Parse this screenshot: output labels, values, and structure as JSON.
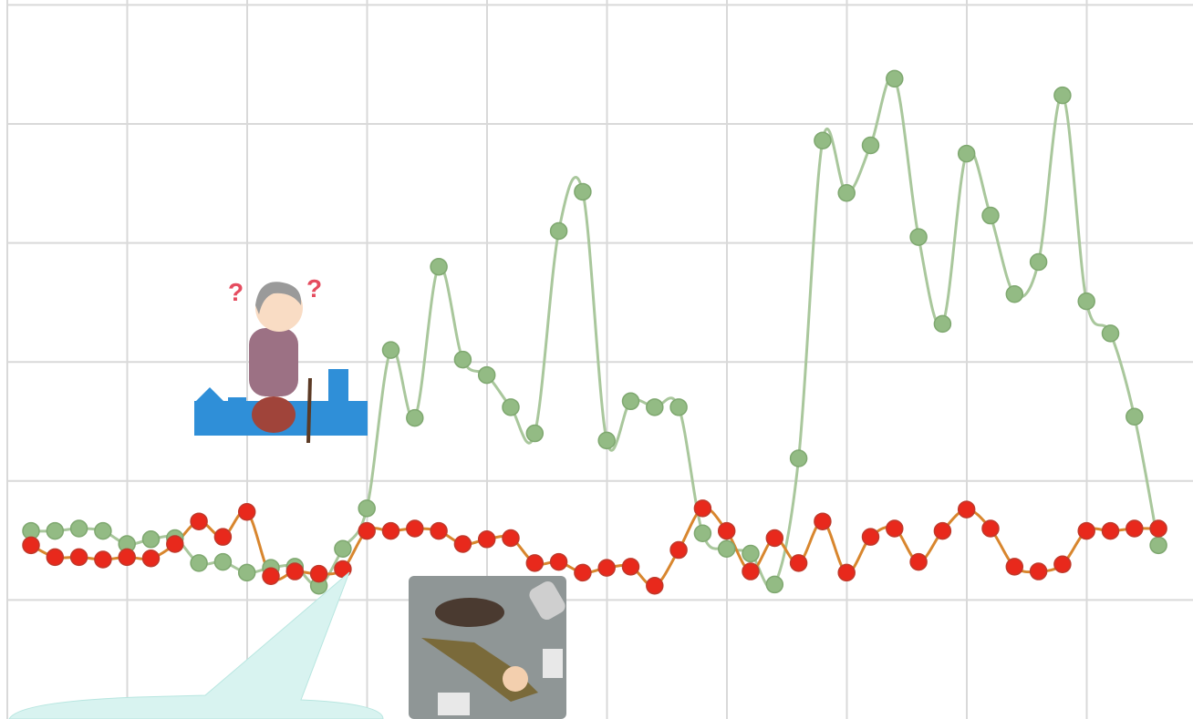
{
  "chart_data": {
    "type": "line",
    "categories": [
      null,
      null,
      null,
      null,
      null,
      null,
      null,
      null,
      null,
      null,
      null,
      null,
      null,
      null,
      null,
      null,
      null,
      null,
      null,
      null,
      null,
      null,
      null,
      null,
      null,
      null,
      null,
      null,
      null,
      null,
      null,
      null,
      null,
      null,
      null,
      null,
      null,
      null,
      null,
      null,
      null,
      null,
      null,
      null,
      null,
      null,
      null,
      null
    ],
    "series": [
      {
        "color": "#93bb84",
        "values": [
          1.58,
          1.58,
          1.6,
          1.58,
          1.47,
          1.51,
          1.52,
          1.31,
          1.32,
          1.23,
          1.27,
          1.28,
          1.12,
          1.43,
          1.77,
          3.1,
          2.53,
          3.8,
          3.02,
          2.89,
          2.62,
          2.4,
          4.1,
          4.43,
          2.34,
          2.67,
          2.62,
          2.62,
          1.56,
          1.43,
          1.39,
          1.13,
          2.19,
          4.86,
          4.42,
          4.82,
          5.38,
          4.05,
          3.32,
          4.75,
          4.23,
          3.57,
          3.84,
          5.24,
          3.51,
          3.24,
          2.54,
          1.46
        ]
      },
      {
        "color": "#e8291c",
        "values": [
          1.46,
          1.36,
          1.36,
          1.34,
          1.36,
          1.35,
          1.47,
          1.66,
          1.53,
          1.74,
          1.2,
          1.24,
          1.22,
          1.26,
          1.58,
          1.58,
          1.6,
          1.58,
          1.47,
          1.51,
          1.52,
          1.31,
          1.32,
          1.23,
          1.27,
          1.28,
          1.12,
          1.42,
          1.77,
          1.58,
          1.24,
          1.52,
          1.31,
          1.66,
          1.23,
          1.53,
          1.6,
          1.32,
          1.58,
          1.76,
          1.6,
          1.28,
          1.24,
          1.3,
          1.58,
          1.58,
          1.6,
          1.6
        ]
      }
    ],
    "ylim": [
      0,
      6
    ],
    "yticks": [
      1,
      2,
      3,
      4,
      5,
      6
    ],
    "grid": true
  }
}
